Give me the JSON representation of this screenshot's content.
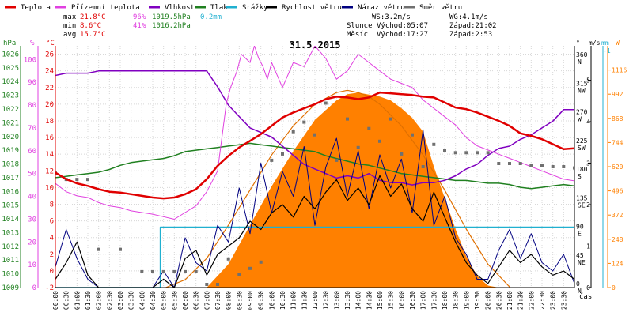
{
  "chart_data": {
    "type": "line",
    "title": "31.5.2015",
    "legend": [
      {
        "name": "Teplota",
        "color": "#e00000"
      },
      {
        "name": "Přízemní teplota",
        "color": "#e040e0"
      },
      {
        "name": "Vlhkost",
        "color": "#8000c0"
      },
      {
        "name": "Tlak",
        "color": "#208020"
      },
      {
        "name": "Srážky",
        "color": "#20b0d0"
      },
      {
        "name": "Rychlost větru",
        "color": "#000000"
      },
      {
        "name": "Náraz větru",
        "color": "#000080"
      },
      {
        "name": "Směr větru",
        "color": "#707070"
      }
    ],
    "stats": {
      "max_label": "max",
      "max_temp": "21.8°C",
      "max_hum": "96%",
      "max_press": "1019.5hPa",
      "max_rain": "0.2mm",
      "min_label": "min",
      "min_temp": "8.6°C",
      "min_hum": "41%",
      "min_press": "1016.2hPa",
      "avg_label": "avg",
      "avg_temp": "15.7°C"
    },
    "wind_info": {
      "ws": "WS:3.2m/s",
      "wg": "WG:4.1m/s"
    },
    "sun_info": {
      "label": "Slunce",
      "rise": "Východ:05:07",
      "set": "Západ:21:02"
    },
    "moon_info": {
      "label": "Měsíc",
      "rise": "Východ:17:27",
      "set": "Západ:2:53"
    },
    "axes": {
      "hpa": {
        "unit": "hPa",
        "ticks": [
          1009,
          1010,
          1011,
          1012,
          1013,
          1014,
          1015,
          1016,
          1017,
          1018,
          1019,
          1020,
          1021,
          1022,
          1023,
          1024,
          1025,
          1026
        ],
        "range": [
          1009,
          1026.6
        ]
      },
      "hum": {
        "unit": "%",
        "ticks": [
          0,
          10,
          20,
          30,
          40,
          50,
          60,
          70,
          80,
          90,
          100
        ],
        "range": [
          0,
          106
        ]
      },
      "temp": {
        "unit": "°C",
        "ticks": [
          -2,
          0,
          2,
          4,
          6,
          8,
          10,
          12,
          14,
          16,
          18,
          20,
          22,
          24,
          26
        ],
        "range": [
          -2,
          27
        ]
      },
      "dir": {
        "unit": "°",
        "ticks": [
          {
            "v": "0",
            "c": "N"
          },
          {
            "v": "45",
            "c": "NE"
          },
          {
            "v": "90",
            "c": "E"
          },
          {
            "v": "135",
            "c": "SE"
          },
          {
            "v": "180",
            "c": "S"
          },
          {
            "v": "225",
            "c": "SW"
          },
          {
            "v": "270",
            "c": "W"
          },
          {
            "v": "315",
            "c": "NW"
          },
          {
            "v": "360",
            "c": "N"
          }
        ],
        "range": [
          0,
          380
        ]
      },
      "ms": {
        "unit": "m/s",
        "ticks": [
          0,
          1,
          2,
          3,
          4,
          5
        ],
        "range": [
          0,
          5.83
        ]
      },
      "mm": {
        "unit": "mm",
        "top_label": "-1"
      },
      "wm2": {
        "unit": "W",
        "ticks": [
          0,
          124,
          248,
          372,
          496,
          620,
          744,
          868,
          992,
          1116
        ],
        "range": [
          0,
          1240
        ]
      },
      "time": {
        "unit": "čas",
        "ticks": [
          "00:00",
          "00:30",
          "01:00",
          "01:30",
          "02:00",
          "02:30",
          "03:00",
          "03:30",
          "04:00",
          "04:30",
          "05:00",
          "05:30",
          "06:00",
          "06:30",
          "07:00",
          "07:30",
          "08:00",
          "08:30",
          "09:00",
          "09:30",
          "10:00",
          "10:30",
          "11:00",
          "11:30",
          "12:00",
          "12:30",
          "13:00",
          "13:30",
          "14:00",
          "14:30",
          "15:00",
          "15:30",
          "16:00",
          "16:30",
          "17:00",
          "17:30",
          "18:00",
          "18:30",
          "19:00",
          "19:30",
          "20:00",
          "20:30",
          "21:00",
          "21:30",
          "22:00",
          "22:30",
          "23:00",
          "23:30"
        ],
        "range": [
          0,
          24
        ]
      }
    },
    "series": {
      "temperature": {
        "x": [
          0,
          0.5,
          1,
          1.5,
          2,
          2.5,
          3,
          3.5,
          4,
          4.5,
          5,
          5.5,
          6,
          6.5,
          7,
          7.5,
          8,
          8.5,
          9,
          9.5,
          10,
          10.5,
          11,
          11.5,
          12,
          12.5,
          13,
          13.5,
          14,
          14.5,
          15,
          15.5,
          16,
          16.5,
          17,
          17.5,
          18,
          18.5,
          19,
          19.5,
          20,
          20.5,
          21,
          21.5,
          22,
          22.5,
          23,
          23.5,
          24
        ],
        "y": [
          11.8,
          11,
          10.5,
          10.2,
          9.8,
          9.5,
          9.4,
          9.2,
          9.0,
          8.8,
          8.7,
          8.8,
          9.2,
          9.8,
          11,
          12.6,
          13.8,
          14.8,
          15.6,
          16.4,
          17.4,
          18.4,
          19.0,
          19.5,
          20.0,
          20.6,
          20.9,
          20.8,
          20.6,
          20.8,
          21.4,
          21.3,
          21.2,
          21.1,
          20.9,
          20.8,
          20.2,
          19.6,
          19.4,
          19.0,
          18.5,
          18.0,
          17.4,
          16.5,
          16.2,
          15.8,
          15.2,
          14.6,
          14.7
        ]
      },
      "ground_temperature": {
        "x": [
          0,
          0.5,
          1,
          1.5,
          2,
          2.5,
          3,
          3.5,
          4,
          4.5,
          5,
          5.5,
          6,
          6.5,
          7,
          7.5,
          7.9,
          8.1,
          8.4,
          8.6,
          9,
          9.2,
          9.4,
          9.6,
          9.8,
          10,
          10.5,
          11,
          11.5,
          12,
          12.5,
          13,
          13.5,
          14,
          14.5,
          15,
          15.5,
          16,
          16.5,
          17,
          17.5,
          18,
          18.5,
          19,
          19.5,
          20,
          20.5,
          21,
          21.5,
          22,
          22.5,
          23,
          23.5,
          24
        ],
        "y": [
          10.5,
          9.5,
          9.0,
          8.8,
          8.2,
          7.8,
          7.6,
          7.2,
          7.0,
          6.8,
          6.5,
          6.2,
          7.0,
          7.8,
          9.5,
          12.0,
          20.0,
          22.0,
          24.0,
          26.0,
          25.0,
          27.0,
          25.5,
          24.5,
          23.0,
          25.0,
          22.0,
          25.0,
          24.5,
          27.0,
          25.5,
          23.0,
          24.0,
          26.0,
          25.0,
          24.0,
          23.0,
          22.5,
          22.0,
          20.5,
          19.5,
          18.5,
          17.5,
          16.0,
          15.0,
          14.5,
          14.0,
          13.5,
          13.0,
          12.5,
          12.0,
          11.5,
          11.0,
          10.8
        ]
      },
      "humidity": {
        "x": [
          0,
          0.5,
          1,
          1.5,
          2,
          2.5,
          3,
          3.5,
          4,
          4.5,
          5,
          5.5,
          6,
          6.5,
          7,
          7.5,
          8,
          8.5,
          9,
          9.5,
          10,
          10.5,
          11,
          11.5,
          12,
          12.5,
          13,
          13.5,
          14,
          14.5,
          15,
          15.5,
          16,
          16.5,
          17,
          17.5,
          18,
          18.5,
          19,
          19.5,
          20,
          20.5,
          21,
          21.5,
          22,
          22.5,
          23,
          23.5,
          24
        ],
        "y": [
          93,
          94,
          94,
          94,
          95,
          95,
          95,
          95,
          95,
          95,
          95,
          95,
          95,
          95,
          95,
          88,
          80,
          75,
          70,
          68,
          66,
          62,
          58,
          54,
          52,
          50,
          48,
          49,
          48,
          50,
          47,
          46,
          46,
          45,
          46,
          46,
          47,
          49,
          52,
          54,
          58,
          61,
          62,
          65,
          67,
          70,
          73,
          78,
          78
        ]
      },
      "pressure": {
        "x": [
          0,
          0.5,
          1,
          1.5,
          2,
          2.5,
          3,
          3.5,
          4,
          4.5,
          5,
          5.5,
          6,
          6.5,
          7,
          7.5,
          8,
          8.5,
          9,
          9.5,
          10,
          10.5,
          11,
          11.5,
          12,
          12.5,
          13,
          13.5,
          14,
          14.5,
          15,
          15.5,
          16,
          16.5,
          17,
          17.5,
          18,
          18.5,
          19,
          19.5,
          20,
          20.5,
          21,
          21.5,
          22,
          22.5,
          23,
          23.5,
          24
        ],
        "y": [
          1017,
          1017.1,
          1017.2,
          1017.3,
          1017.4,
          1017.6,
          1017.9,
          1018.1,
          1018.2,
          1018.3,
          1018.4,
          1018.6,
          1018.9,
          1019.0,
          1019.1,
          1019.2,
          1019.3,
          1019.4,
          1019.5,
          1019.4,
          1019.3,
          1019.2,
          1019.1,
          1019.0,
          1018.9,
          1018.6,
          1018.4,
          1018.2,
          1018.0,
          1017.9,
          1017.7,
          1017.5,
          1017.3,
          1017.2,
          1017.1,
          1017.0,
          1016.9,
          1016.8,
          1016.8,
          1016.7,
          1016.6,
          1016.6,
          1016.5,
          1016.3,
          1016.2,
          1016.3,
          1016.4,
          1016.5,
          1016.4
        ]
      },
      "precipitation_total": {
        "x": [
          0,
          4.85,
          4.85,
          24
        ],
        "y": [
          0,
          0,
          0.2,
          0.2
        ]
      },
      "solar_radiation": {
        "x": [
          7,
          8,
          9,
          10,
          11,
          12,
          13,
          13.5,
          14,
          14.5,
          15,
          15.5,
          16,
          16.5,
          17,
          17.5,
          18,
          18.5,
          19,
          19.5,
          20,
          20.5
        ],
        "y": [
          0,
          120,
          320,
          520,
          700,
          860,
          960,
          992,
          1000,
          990,
          980,
          960,
          920,
          870,
          800,
          620,
          460,
          300,
          160,
          60,
          10,
          0
        ]
      },
      "solar_theoretical": {
        "x": [
          5.1,
          6,
          7,
          8,
          9,
          10,
          11,
          12,
          13,
          13.5,
          14,
          14.5,
          15,
          16,
          17,
          18,
          19,
          20,
          21.03
        ],
        "y": [
          0,
          40,
          150,
          320,
          500,
          680,
          830,
          940,
          1000,
          1012,
          1000,
          980,
          940,
          830,
          680,
          500,
          300,
          120,
          0
        ]
      },
      "wind_speed": {
        "x": [
          0,
          0.5,
          1,
          1.5,
          2,
          2.5,
          3,
          3.5,
          4,
          4.5,
          5,
          5.5,
          6,
          6.5,
          7,
          7.5,
          8,
          8.5,
          9,
          9.5,
          10,
          10.5,
          11,
          11.5,
          12,
          12.5,
          13,
          13.5,
          14,
          14.5,
          15,
          15.5,
          16,
          16.5,
          17,
          17.5,
          18,
          18.5,
          19,
          19.5,
          20,
          20.5,
          21,
          21.5,
          22,
          22.5,
          23,
          23.5,
          24
        ],
        "y": [
          0.2,
          0.6,
          1.1,
          0.3,
          0,
          0,
          0,
          0,
          0,
          0,
          0.2,
          0,
          0.7,
          0.9,
          0.3,
          0.8,
          1.0,
          1.2,
          1.6,
          1.4,
          1.8,
          2.0,
          1.7,
          2.2,
          1.9,
          2.3,
          2.6,
          2.1,
          2.4,
          2.0,
          2.7,
          2.2,
          2.5,
          1.9,
          1.6,
          2.3,
          1.7,
          1.1,
          0.6,
          0.3,
          0.1,
          0.5,
          0.9,
          0.6,
          0.8,
          0.5,
          0.3,
          0.4,
          0.2
        ]
      },
      "wind_gust": {
        "x": [
          0,
          0.5,
          1,
          1.5,
          2,
          2.5,
          3,
          3.5,
          4,
          4.5,
          5,
          5.5,
          6,
          6.5,
          7,
          7.5,
          8,
          8.5,
          9,
          9.5,
          10,
          10.5,
          11,
          11.5,
          12,
          12.5,
          13,
          13.5,
          14,
          14.5,
          15,
          15.5,
          16,
          16.5,
          17,
          17.5,
          18,
          18.5,
          19,
          19.5,
          20,
          20.5,
          21,
          21.5,
          22,
          22.5,
          23,
          23.5,
          24
        ],
        "y": [
          0.5,
          1.4,
          0.7,
          0.2,
          0,
          0,
          0,
          0,
          0,
          0,
          0.4,
          0,
          1.2,
          0.6,
          0.4,
          1.5,
          1.1,
          2.4,
          1.3,
          3.0,
          1.8,
          2.8,
          2.2,
          3.4,
          1.5,
          2.9,
          3.6,
          2.2,
          3.3,
          1.9,
          3.2,
          2.4,
          3.1,
          1.8,
          3.8,
          1.5,
          2.2,
          1.2,
          0.8,
          0.2,
          0.2,
          0.9,
          1.4,
          0.7,
          1.3,
          0.6,
          0.4,
          0.8,
          0.1
        ]
      },
      "wind_direction": {
        "x": [
          0,
          0.5,
          1,
          1.5,
          2,
          3,
          4,
          4.5,
          5,
          5.5,
          6,
          6.5,
          7,
          7.5,
          8,
          8.5,
          9,
          9.5,
          10,
          10.5,
          11,
          11.5,
          12,
          12.5,
          13,
          13.5,
          14,
          14.5,
          15,
          15.5,
          16,
          16.5,
          17,
          17.5,
          18,
          18.5,
          19,
          19.5,
          20,
          20.5,
          21,
          21.5,
          22,
          22.5,
          23,
          23.5,
          24
        ],
        "y": [
          180,
          170,
          170,
          170,
          60,
          60,
          25,
          25,
          25,
          25,
          25,
          25,
          5,
          5,
          45,
          20,
          30,
          40,
          200,
          210,
          245,
          260,
          240,
          290,
          200,
          265,
          220,
          250,
          230,
          265,
          210,
          240,
          190,
          225,
          215,
          212,
          212,
          212,
          212,
          195,
          195,
          195,
          192,
          192,
          190,
          190,
          188
        ]
      }
    }
  }
}
